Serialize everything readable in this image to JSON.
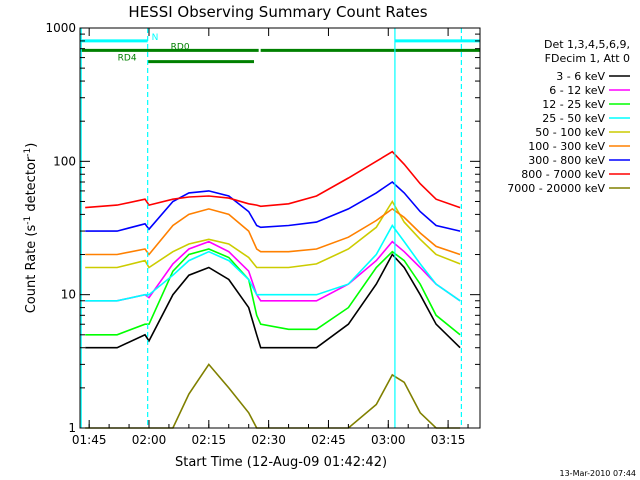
{
  "chart_data": {
    "type": "line",
    "title": "HESSI Observing Summary Count Rates",
    "xlabel": "Start Time (12-Aug-09 01:42:42)",
    "ylabel": "Count Rate (s",
    "ylabel_sup": "-1",
    "ylabel_tail": " detector",
    "ylabel_sup2": "-1",
    "ylabel_close": ")",
    "yscale": "log",
    "ylim": [
      1,
      1000
    ],
    "xlim": [
      "01:42:42",
      "03:23:00"
    ],
    "x_ticks": [
      "01:45",
      "02:00",
      "02:15",
      "02:30",
      "02:45",
      "03:00",
      "03:15"
    ],
    "y_ticks": [
      "1",
      "10",
      "100",
      "1000"
    ],
    "grid": false,
    "legend": {
      "position": "right",
      "header_lines": [
        "Det 1,3,4,5,6,9,",
        "FDecim 1, Att 0"
      ]
    },
    "x": [
      "01:44",
      "01:52",
      "01:59",
      "02:00",
      "02:06",
      "02:10",
      "02:15",
      "02:20",
      "02:25",
      "02:27",
      "02:28",
      "02:35",
      "02:42",
      "02:50",
      "02:57",
      "03:01",
      "03:04",
      "03:08",
      "03:12",
      "03:18"
    ],
    "series": [
      {
        "name": "3 - 6 keV",
        "color": "#000000",
        "values": [
          4,
          4,
          5,
          4.5,
          10,
          14,
          16,
          13,
          8,
          5,
          4,
          4,
          4,
          6,
          12,
          20,
          16,
          10,
          6,
          4
        ]
      },
      {
        "name": "6 - 12 keV",
        "color": "#ff00ff",
        "values": [
          9,
          9,
          10,
          9.5,
          17,
          22,
          25,
          21,
          15,
          10,
          9,
          9,
          9,
          12,
          18,
          25,
          21,
          16,
          12,
          9
        ]
      },
      {
        "name": "12 - 25 keV",
        "color": "#00ff00",
        "values": [
          5,
          5,
          6,
          6,
          15,
          20,
          22,
          19,
          13,
          7,
          6,
          5.5,
          5.5,
          8,
          16,
          21,
          18,
          12,
          7,
          5
        ]
      },
      {
        "name": "25 - 50 keV",
        "color": "#00ffff",
        "values": [
          9,
          9,
          10,
          10,
          14,
          18,
          21,
          18,
          13,
          10,
          10,
          10,
          10,
          12,
          20,
          33,
          25,
          17,
          12,
          9
        ]
      },
      {
        "name": "50 - 100 keV",
        "color": "#cccc00",
        "values": [
          16,
          16,
          18,
          16,
          21,
          24,
          26,
          24,
          19,
          16,
          16,
          16,
          17,
          22,
          32,
          50,
          35,
          26,
          20,
          17
        ]
      },
      {
        "name": "100 - 300 keV",
        "color": "#ff8000",
        "values": [
          20,
          20,
          22,
          20,
          33,
          40,
          44,
          40,
          30,
          22,
          21,
          21,
          22,
          27,
          36,
          44,
          38,
          29,
          23,
          20
        ]
      },
      {
        "name": "300 - 800 keV",
        "color": "#0000ff",
        "values": [
          30,
          30,
          34,
          31,
          50,
          58,
          60,
          55,
          42,
          33,
          32,
          33,
          35,
          44,
          58,
          70,
          58,
          42,
          33,
          30
        ]
      },
      {
        "name": "800 - 7000 keV",
        "color": "#ff0000",
        "values": [
          45,
          47,
          52,
          47,
          52,
          54,
          55,
          53,
          48,
          47,
          46,
          48,
          55,
          75,
          100,
          118,
          95,
          68,
          52,
          45
        ]
      },
      {
        "name": "7000 - 20000 keV",
        "color": "#808000",
        "values": [
          1,
          1,
          1,
          1,
          1,
          1.8,
          3,
          2,
          1.3,
          1,
          1,
          1,
          1,
          1,
          1.5,
          2.5,
          2.2,
          1.3,
          1,
          1
        ]
      }
    ],
    "flag_bars": [
      {
        "label": "N",
        "color": "#00ffff",
        "level": 800,
        "spans": [
          [
            "01:42:42",
            "01:59:40"
          ],
          [
            "03:01:40",
            "03:23:00"
          ]
        ]
      },
      {
        "label": "RD0",
        "color": "#008000",
        "level": 680,
        "spans": [
          [
            "01:42:42",
            "02:27:30"
          ],
          [
            "02:28:00",
            "03:23:00"
          ]
        ]
      },
      {
        "label": "RD4",
        "color": "#008000",
        "level": 560,
        "spans": [
          [
            "01:59:40",
            "02:26:20"
          ]
        ]
      }
    ],
    "vertical_lines": [
      {
        "time": "01:43:00",
        "style": "solid",
        "color": "#00ffff"
      },
      {
        "time": "01:59:40",
        "style": "dashed",
        "color": "#00ffff"
      },
      {
        "time": "03:01:40",
        "style": "solid",
        "color": "#00ffff"
      },
      {
        "time": "03:18:20",
        "style": "dashed",
        "color": "#00ffff"
      }
    ],
    "footer": "13-Mar-2010 07:44"
  }
}
